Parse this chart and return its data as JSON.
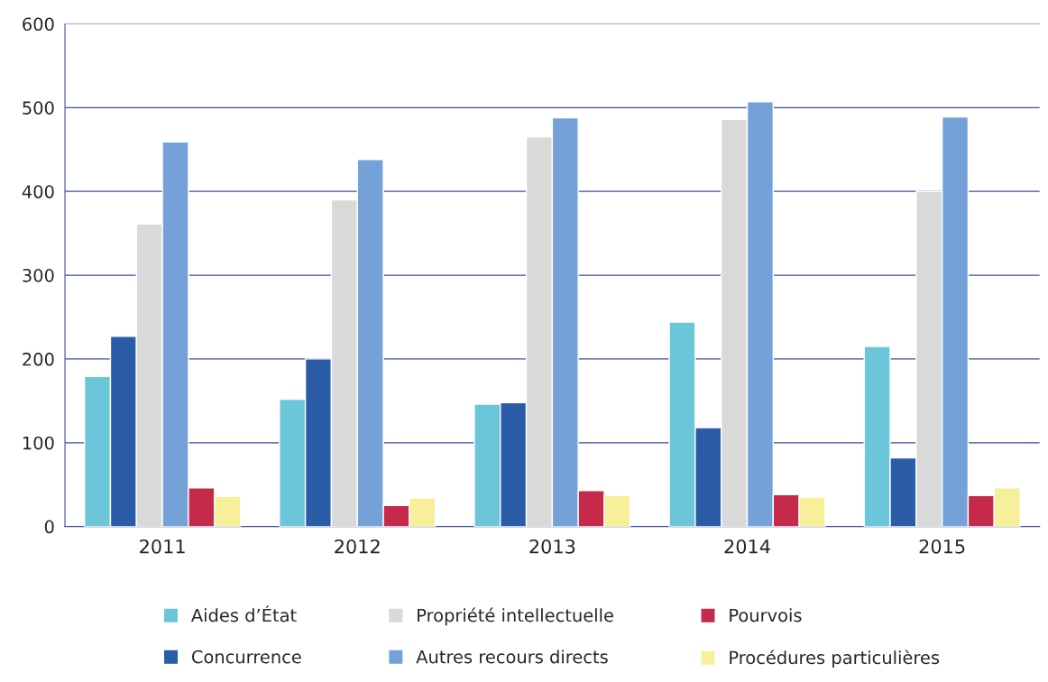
{
  "chart_data": {
    "type": "bar",
    "categories": [
      "2011",
      "2012",
      "2013",
      "2014",
      "2015"
    ],
    "series": [
      {
        "name": "Aides d’État",
        "color": "#6cc6da",
        "values": [
          179,
          152,
          146,
          244,
          215
        ]
      },
      {
        "name": "Concurrence",
        "color": "#2b5ca8",
        "values": [
          227,
          200,
          148,
          118,
          82
        ]
      },
      {
        "name": "Propriété intellectuelle",
        "color": "#d9d9d9",
        "values": [
          361,
          390,
          465,
          486,
          400
        ]
      },
      {
        "name": "Autres recours directs",
        "color": "#74a2d8",
        "values": [
          459,
          438,
          488,
          507,
          489
        ]
      },
      {
        "name": "Pourvois",
        "color": "#c52a4b",
        "values": [
          46,
          25,
          43,
          38,
          37
        ]
      },
      {
        "name": "Procédures particulières",
        "color": "#f7ef9a",
        "values": [
          36,
          34,
          37,
          35,
          46
        ]
      }
    ],
    "ylim": [
      0,
      600
    ],
    "yticks": [
      0,
      100,
      200,
      300,
      400,
      500,
      600
    ],
    "grid": "y",
    "legend": "bottom"
  }
}
